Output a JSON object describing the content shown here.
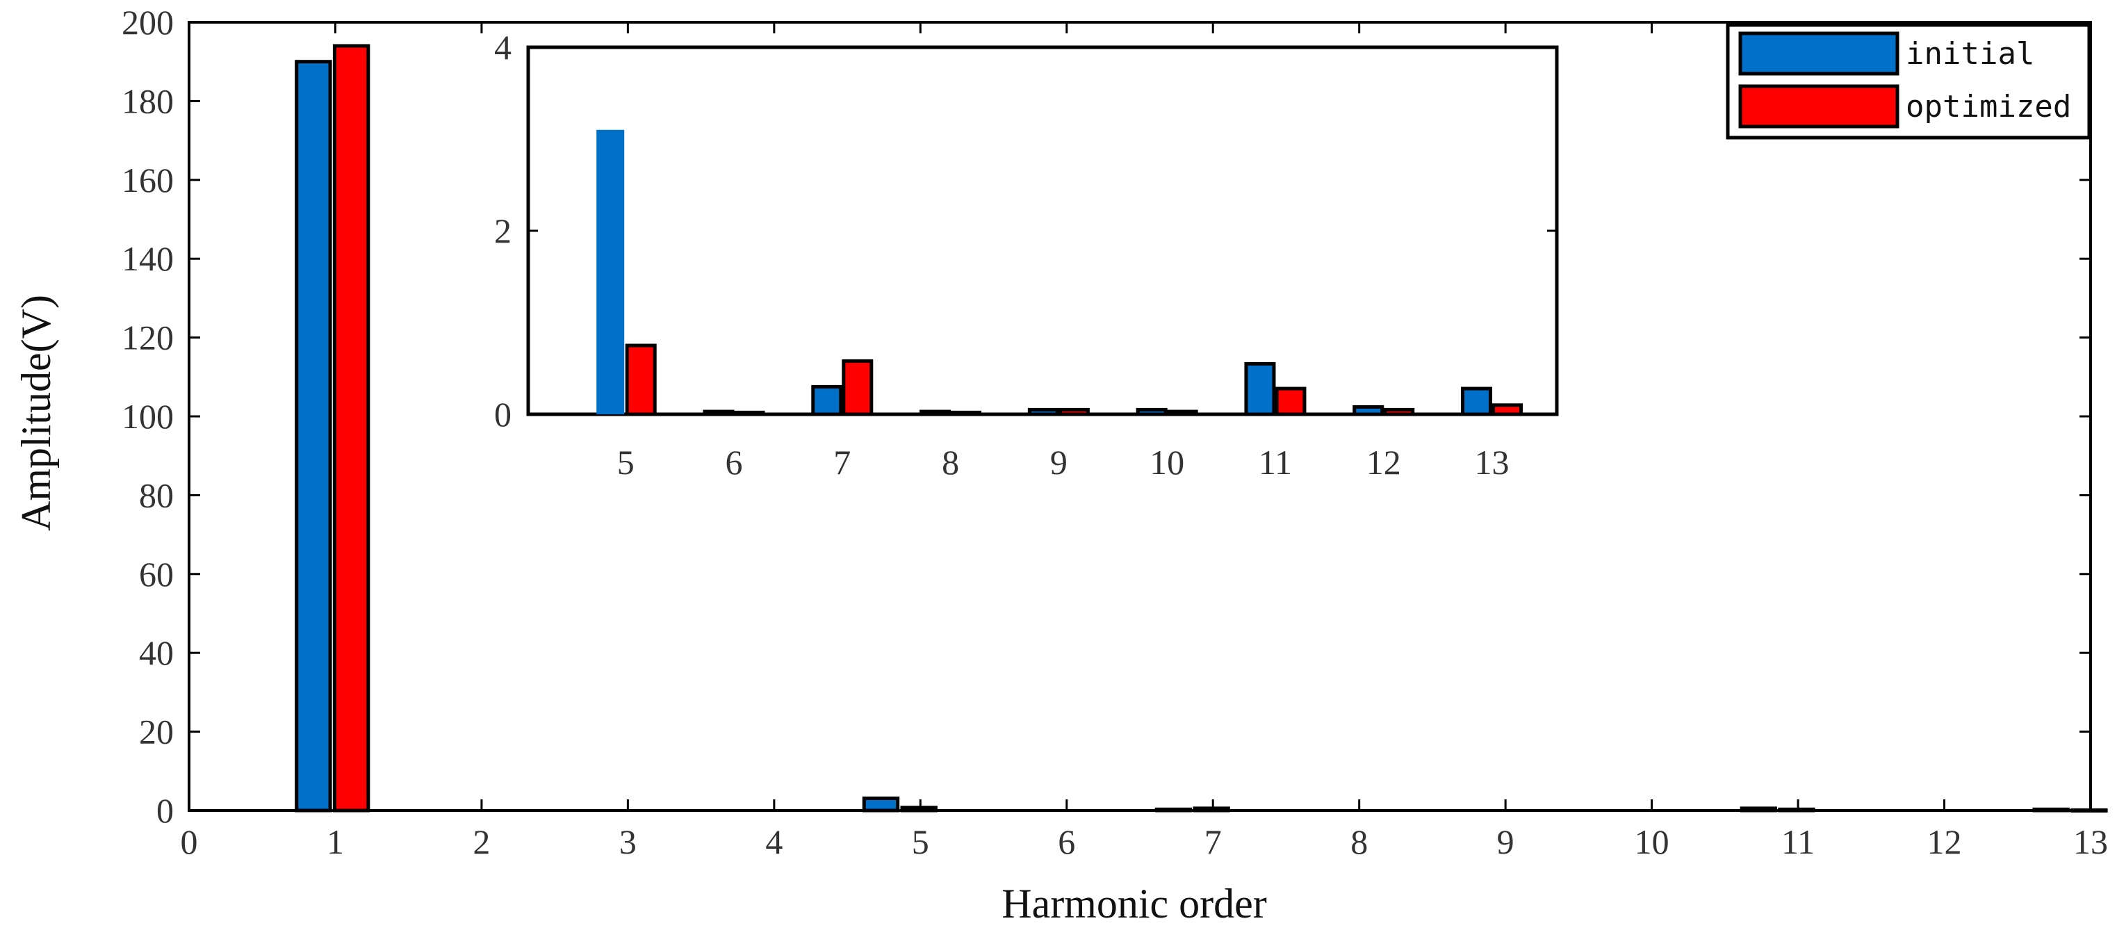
{
  "colors": {
    "initial": "#0070C8",
    "optimized": "#FF0000",
    "axis": "#000000"
  },
  "chart_data": {
    "type": "bar",
    "xlabel": "Harmonic order",
    "ylabel": "Amplitude(V)",
    "xlim": [
      0,
      13
    ],
    "ylim": [
      0,
      200
    ],
    "xticks": [
      0,
      1,
      2,
      3,
      4,
      5,
      6,
      7,
      8,
      9,
      10,
      11,
      12,
      13
    ],
    "yticks": [
      0,
      20,
      40,
      60,
      80,
      100,
      120,
      140,
      160,
      180,
      200
    ],
    "legend_position": "top-right",
    "legend": [
      "initial",
      "optimized"
    ],
    "series": [
      {
        "name": "initial",
        "x": [
          0.85,
          4.73,
          6.73,
          10.73,
          12.73
        ],
        "values": [
          190,
          3.1,
          0.3,
          0.55,
          0.3
        ]
      },
      {
        "name": "optimized",
        "x": [
          1.11,
          4.99,
          6.99,
          10.99,
          12.99
        ],
        "values": [
          194,
          0.75,
          0.55,
          0.3,
          0.1
        ]
      }
    ],
    "inset": {
      "type": "bar",
      "categories": [
        "5",
        "6",
        "7",
        "8",
        "9",
        "10",
        "11",
        "12",
        "13"
      ],
      "ylim": [
        0,
        4
      ],
      "yticks": [
        0,
        2,
        4
      ],
      "series": [
        {
          "name": "initial",
          "values": [
            3.1,
            0.03,
            0.3,
            0.03,
            0.05,
            0.05,
            0.55,
            0.08,
            0.28
          ]
        },
        {
          "name": "optimized",
          "values": [
            0.75,
            0.02,
            0.58,
            0.02,
            0.05,
            0.03,
            0.28,
            0.05,
            0.1
          ]
        }
      ]
    }
  }
}
